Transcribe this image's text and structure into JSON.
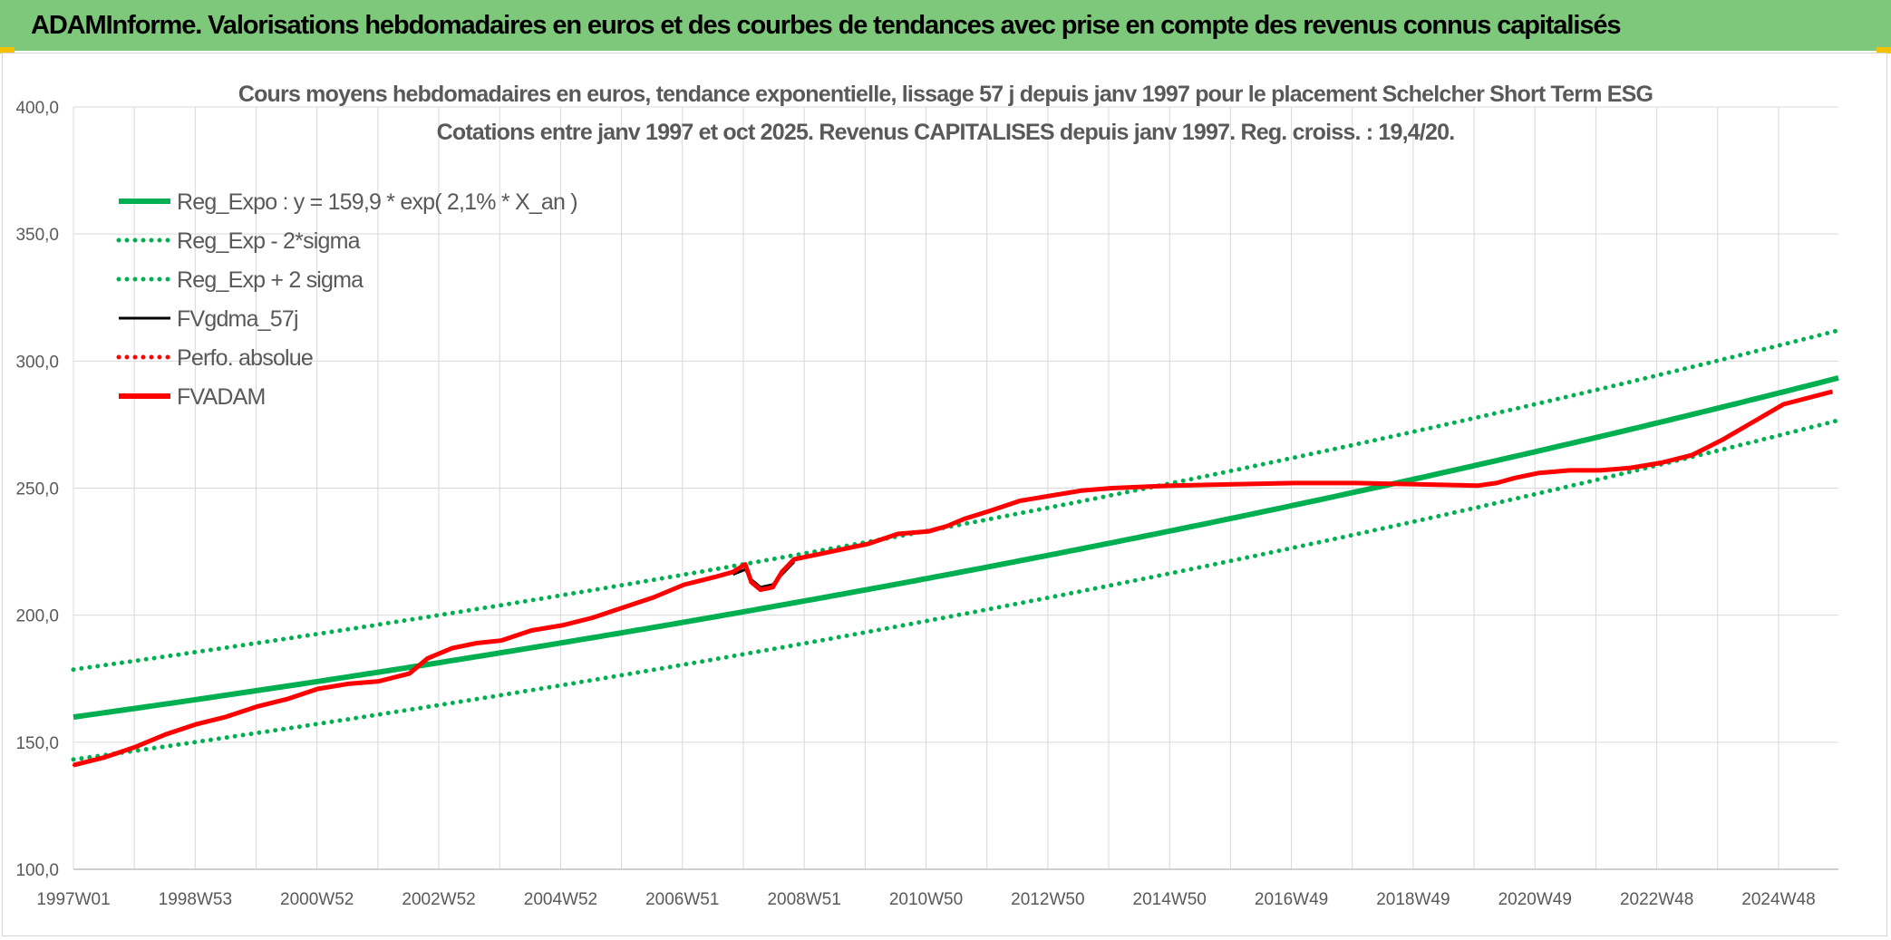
{
  "banner": {
    "title": "ADAMInforme. Valorisations hebdomadaires en euros et des courbes de tendances avec prise en compte des revenus connus capitalisés"
  },
  "colors": {
    "banner_bg": "#7dc87a",
    "regression": "#00b050",
    "fund": "#ff0000",
    "smoothed": "#000000",
    "grid": "#d9d9d9",
    "text": "#595959"
  },
  "chart_data": {
    "type": "line",
    "title_lines": [
      "Cours moyens hebdomadaires en euros, tendance exponentielle, lissage 57 j depuis janv 1997 pour le placement Schelcher Short Term ESG",
      "Cotations entre janv 1997 et oct 2025. Revenus CAPITALISES depuis janv 1997. Reg. croiss. : 19,4/20."
    ],
    "x_axis": {
      "start": "1997W01",
      "end": "2025W42",
      "tick_labels": [
        "1997W01",
        "1998W53",
        "2000W52",
        "2002W52",
        "2004W52",
        "2006W51",
        "2008W51",
        "2010W50",
        "2012W50",
        "2014W50",
        "2016W49",
        "2018W49",
        "2020W49",
        "2022W48",
        "2024W48"
      ]
    },
    "y_axis": {
      "range": [
        100,
        400
      ],
      "tick_labels": [
        "100,0",
        "150,0",
        "200,0",
        "250,0",
        "300,0",
        "350,0",
        "400,0"
      ],
      "grid": true
    },
    "legend_position": "top-left",
    "legend": [
      {
        "key": "reg_expo",
        "label": "Reg_Expo : y = 159,9 * exp( 2,1% *  X_an )",
        "style": "solid-thick",
        "color": "#00b050"
      },
      {
        "key": "reg_minus",
        "label": "Reg_Exp - 2*sigma",
        "style": "dotted",
        "color": "#00b050"
      },
      {
        "key": "reg_plus",
        "label": "Reg_Exp + 2 sigma",
        "style": "dotted",
        "color": "#00b050"
      },
      {
        "key": "fvgdma",
        "label": "FVgdma_57j",
        "style": "solid-thin",
        "color": "#000000"
      },
      {
        "key": "perfo",
        "label": "Perfo. absolue",
        "style": "dotted",
        "color": "#ff0000"
      },
      {
        "key": "fvadam",
        "label": "FVADAM",
        "style": "solid-thick",
        "color": "#ff0000"
      }
    ],
    "regression": {
      "a": 159.9,
      "rate": 0.021,
      "sigma2_upper_offset": 18.7,
      "sigma2_lower_offset": -16.7
    },
    "series": [
      {
        "name": "FVADAM",
        "points": [
          [
            1997.0,
            141
          ],
          [
            1997.5,
            144
          ],
          [
            1998.0,
            148
          ],
          [
            1998.5,
            153
          ],
          [
            1999.0,
            157
          ],
          [
            1999.5,
            160
          ],
          [
            2000.0,
            164
          ],
          [
            2000.5,
            167
          ],
          [
            2001.0,
            171
          ],
          [
            2001.5,
            173
          ],
          [
            2002.0,
            174
          ],
          [
            2002.5,
            177
          ],
          [
            2002.8,
            183
          ],
          [
            2003.2,
            187
          ],
          [
            2003.6,
            189
          ],
          [
            2004.0,
            190
          ],
          [
            2004.5,
            194
          ],
          [
            2005.0,
            196
          ],
          [
            2005.5,
            199
          ],
          [
            2006.0,
            203
          ],
          [
            2006.5,
            207
          ],
          [
            2007.0,
            212
          ],
          [
            2007.5,
            215
          ],
          [
            2007.8,
            217
          ],
          [
            2008.0,
            220
          ],
          [
            2008.1,
            213
          ],
          [
            2008.25,
            210
          ],
          [
            2008.45,
            211
          ],
          [
            2008.6,
            217
          ],
          [
            2008.8,
            222
          ],
          [
            2009.2,
            224
          ],
          [
            2009.6,
            226
          ],
          [
            2010.0,
            228
          ],
          [
            2010.5,
            232
          ],
          [
            2011.0,
            233
          ],
          [
            2011.3,
            235
          ],
          [
            2011.6,
            238
          ],
          [
            2012.0,
            241
          ],
          [
            2012.5,
            245
          ],
          [
            2013.0,
            247
          ],
          [
            2013.5,
            249
          ],
          [
            2014.0,
            250
          ],
          [
            2015.0,
            251
          ],
          [
            2016.0,
            251.5
          ],
          [
            2017.0,
            252
          ],
          [
            2018.0,
            252
          ],
          [
            2019.0,
            251.5
          ],
          [
            2020.0,
            251
          ],
          [
            2020.3,
            252
          ],
          [
            2020.6,
            254
          ],
          [
            2021.0,
            256
          ],
          [
            2021.5,
            257
          ],
          [
            2022.0,
            257
          ],
          [
            2022.5,
            258
          ],
          [
            2023.0,
            260
          ],
          [
            2023.5,
            263
          ],
          [
            2024.0,
            269
          ],
          [
            2024.5,
            276
          ],
          [
            2025.0,
            283
          ],
          [
            2025.8,
            288
          ]
        ]
      },
      {
        "name": "FVgdma_57j",
        "points": [
          [
            2007.8,
            216
          ],
          [
            2008.0,
            218
          ],
          [
            2008.1,
            214
          ],
          [
            2008.25,
            211
          ],
          [
            2008.45,
            212
          ],
          [
            2008.6,
            216
          ],
          [
            2008.8,
            221
          ]
        ]
      }
    ]
  }
}
